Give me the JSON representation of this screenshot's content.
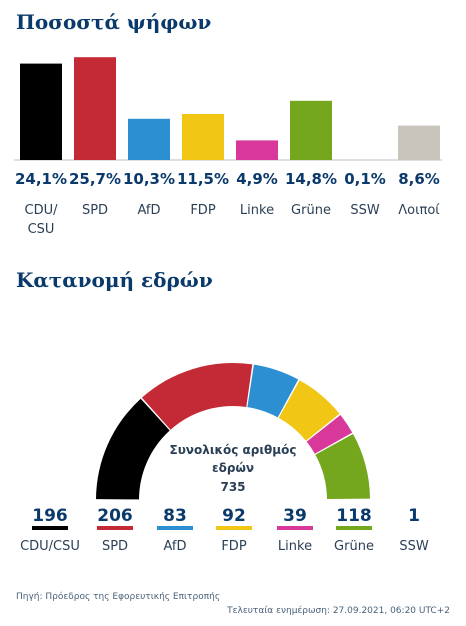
{
  "votes_title": "Ποσοστά ψήφων",
  "seats_title": "Κατανομή εδρών",
  "chart_data": [
    {
      "type": "bar",
      "title": "Ποσοστά ψήφων",
      "categories": [
        "CDU/\nCSU",
        "SPD",
        "AfD",
        "FDP",
        "Linke",
        "Grüne",
        "SSW",
        "Λοιποί"
      ],
      "values": [
        24.1,
        25.7,
        10.3,
        11.5,
        4.9,
        14.8,
        0.1,
        8.6
      ],
      "value_labels": [
        "24,1%",
        "25,7%",
        "10,3%",
        "11,5%",
        "4,9%",
        "14,8%",
        "0,1%",
        "8,6%"
      ],
      "colors": [
        "#000000",
        "#c42a36",
        "#2b8fd1",
        "#f2c614",
        "#d8389a",
        "#74a61e",
        "#1d6ec0",
        "#c9c4bc"
      ],
      "ylim": [
        0,
        26
      ],
      "grid": false,
      "legend": "none"
    },
    {
      "type": "pie",
      "title": "Κατανομή εδρών",
      "subtype": "parliament semicircle",
      "categories": [
        "CDU/CSU",
        "SPD",
        "AfD",
        "FDP",
        "Linke",
        "Grüne",
        "SSW"
      ],
      "values": [
        196,
        206,
        83,
        92,
        39,
        118,
        1
      ],
      "colors": [
        "#000000",
        "#c42a36",
        "#2b8fd1",
        "#f2c614",
        "#d8389a",
        "#74a61e",
        "#1d6ec0"
      ],
      "total_label": "Συνολικός αριθμός εδρών",
      "total": 735
    }
  ],
  "source": "Πηγή: Πρόεδρος της Εφορευτικής Επιτροπής",
  "updated": "Τελευταία ενημέρωση: 27.09.2021, 06:20 UTC+2"
}
